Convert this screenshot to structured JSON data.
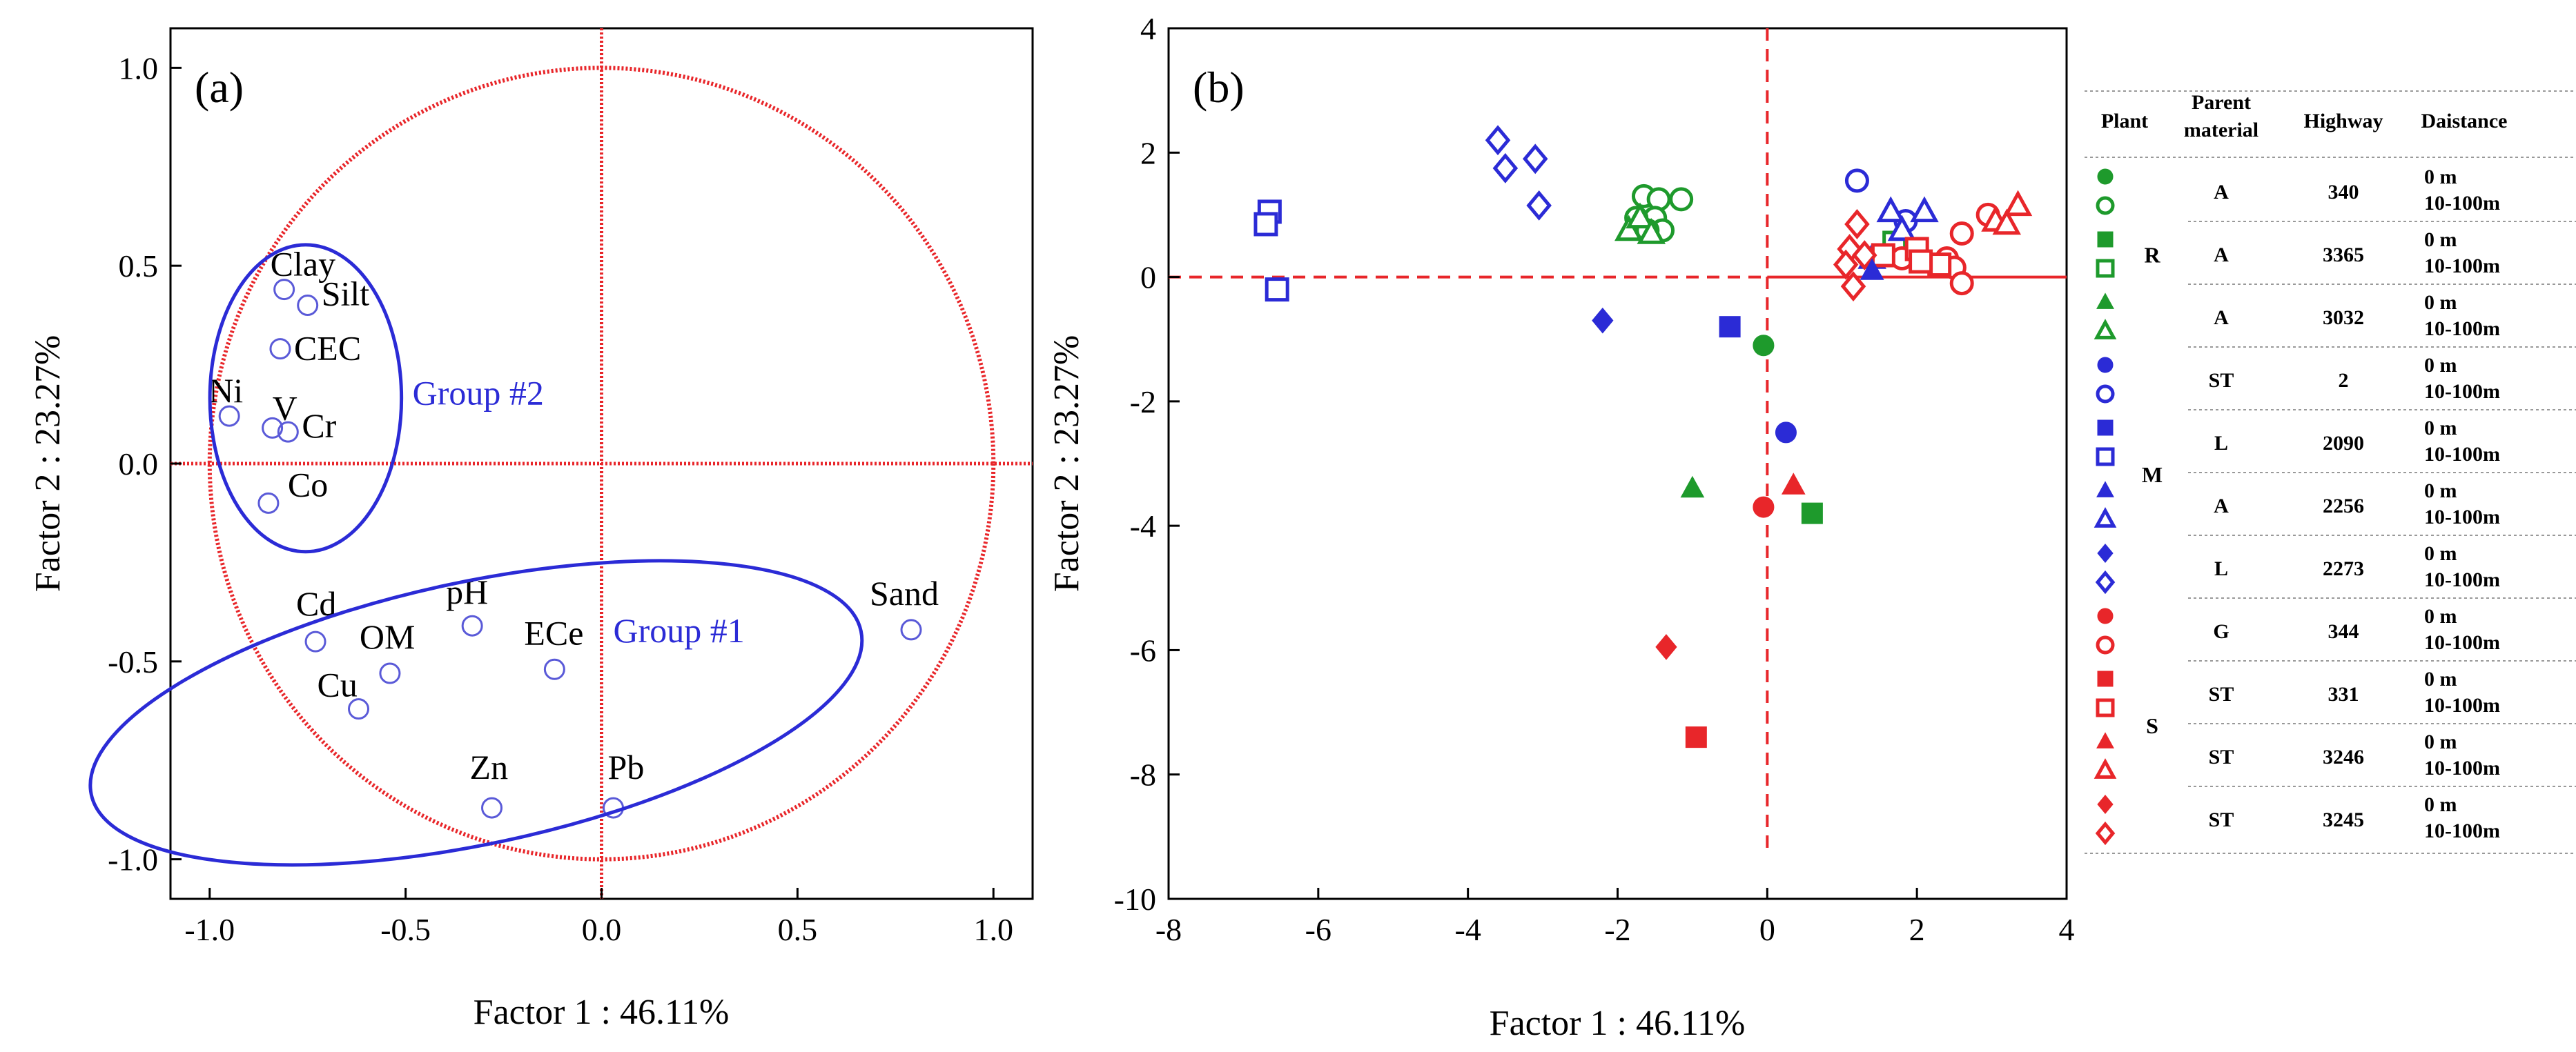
{
  "colors": {
    "red": "#e8262a",
    "blue": "#2b2bd6",
    "green": "#1e9a2c",
    "axis": "#000000",
    "circle": "#e8262a"
  },
  "chart_data": [
    {
      "type": "scatter",
      "panel_label": "(a)",
      "title": "",
      "xlabel": "Factor 1 : 46.11%",
      "ylabel": "Factor 2 : 23.27%",
      "xlim": [
        -1.1,
        1.1
      ],
      "ylim": [
        -1.1,
        1.1
      ],
      "xticks": [
        -1.0,
        -0.5,
        0.0,
        0.5,
        1.0
      ],
      "xtick_labels": [
        "-1.0",
        "-0.5",
        "0.0",
        "0.5",
        "1.0"
      ],
      "yticks": [
        -1.0,
        -0.5,
        0.0,
        0.5,
        1.0
      ],
      "ytick_labels": [
        "-1.0",
        "-0.5",
        "0.0",
        "0.5",
        "1.0"
      ],
      "grid": false,
      "unit_circle": true,
      "points": [
        {
          "label": "Clay",
          "x": -0.81,
          "y": 0.44
        },
        {
          "label": "Silt",
          "x": -0.75,
          "y": 0.4
        },
        {
          "label": "CEC",
          "x": -0.82,
          "y": 0.29
        },
        {
          "label": "Ni",
          "x": -0.95,
          "y": 0.12
        },
        {
          "label": "V",
          "x": -0.84,
          "y": 0.09
        },
        {
          "label": "Cr",
          "x": -0.8,
          "y": 0.08
        },
        {
          "label": "Co",
          "x": -0.85,
          "y": -0.1
        },
        {
          "label": "pH",
          "x": -0.33,
          "y": -0.41
        },
        {
          "label": "Cd",
          "x": -0.73,
          "y": -0.45
        },
        {
          "label": "OM",
          "x": -0.54,
          "y": -0.53
        },
        {
          "label": "ECe",
          "x": -0.12,
          "y": -0.52
        },
        {
          "label": "Cu",
          "x": -0.62,
          "y": -0.62
        },
        {
          "label": "Zn",
          "x": -0.28,
          "y": -0.87
        },
        {
          "label": "Pb",
          "x": 0.03,
          "y": -0.87
        },
        {
          "label": "Sand",
          "x": 0.79,
          "y": -0.42
        }
      ],
      "groups": [
        {
          "label": "Group #2",
          "members": [
            "Clay",
            "Silt",
            "CEC",
            "Ni",
            "V",
            "Cr",
            "Co"
          ]
        },
        {
          "label": "Group #1",
          "members": [
            "pH",
            "Cd",
            "OM",
            "ECe",
            "Cu",
            "Zn",
            "Pb"
          ]
        }
      ]
    },
    {
      "type": "scatter",
      "panel_label": "(b)",
      "title": "",
      "xlabel": "Factor 1 : 46.11%",
      "ylabel": "Factor 2 : 23.27%",
      "xlim": [
        -8,
        4
      ],
      "ylim": [
        -10,
        4
      ],
      "xticks": [
        -8,
        -6,
        -4,
        -2,
        0,
        2,
        4
      ],
      "xtick_labels": [
        "-8",
        "-6",
        "-4",
        "-2",
        "0",
        "2",
        "4"
      ],
      "yticks": [
        -10,
        -8,
        -6,
        -4,
        -2,
        0,
        2,
        4
      ],
      "ytick_labels": [
        "-10",
        "-8",
        "-6",
        "-4",
        "-2",
        "0",
        "2",
        "4"
      ],
      "grid": false,
      "series": [
        {
          "name": "R 340 0 m",
          "color": "green",
          "marker": "circle",
          "filled": true,
          "points": [
            [
              -0.05,
              -1.1
            ]
          ]
        },
        {
          "name": "R 340 10-100m",
          "color": "green",
          "marker": "circle",
          "filled": false,
          "points": [
            [
              -1.65,
              1.3
            ],
            [
              -1.45,
              1.25
            ],
            [
              -1.15,
              1.25
            ],
            [
              -1.5,
              0.95
            ],
            [
              -1.75,
              0.95
            ],
            [
              -1.4,
              0.75
            ],
            [
              -1.6,
              0.75
            ]
          ]
        },
        {
          "name": "R 3365 0 m",
          "color": "green",
          "marker": "square",
          "filled": true,
          "points": [
            [
              0.6,
              -3.8
            ]
          ]
        },
        {
          "name": "R 3365 10-100m",
          "color": "green",
          "marker": "square",
          "filled": false,
          "points": [
            [
              1.7,
              0.55
            ]
          ]
        },
        {
          "name": "R 3032 0 m",
          "color": "green",
          "marker": "triangle",
          "filled": true,
          "points": [
            [
              -1.0,
              -3.4
            ]
          ]
        },
        {
          "name": "R 3032 10-100m",
          "color": "green",
          "marker": "triangle",
          "filled": false,
          "points": [
            [
              -1.85,
              0.75
            ],
            [
              -1.7,
              0.95
            ],
            [
              -1.55,
              0.7
            ]
          ]
        },
        {
          "name": "M 2 0 m",
          "color": "blue",
          "marker": "circle",
          "filled": true,
          "points": [
            [
              0.25,
              -2.5
            ]
          ]
        },
        {
          "name": "M 2 10-100m",
          "color": "blue",
          "marker": "circle",
          "filled": false,
          "points": [
            [
              1.2,
              1.55
            ],
            [
              1.85,
              0.9
            ]
          ]
        },
        {
          "name": "M 2090 0 m",
          "color": "blue",
          "marker": "square",
          "filled": true,
          "points": [
            [
              -0.5,
              -0.8
            ]
          ]
        },
        {
          "name": "M 2090 10-100m",
          "color": "blue",
          "marker": "square",
          "filled": false,
          "points": [
            [
              -6.65,
              1.05
            ],
            [
              -6.7,
              0.85
            ],
            [
              -6.55,
              -0.2
            ]
          ]
        },
        {
          "name": "M 2256 0 m",
          "color": "blue",
          "marker": "triangle",
          "filled": true,
          "points": [
            [
              1.4,
              0.1
            ]
          ]
        },
        {
          "name": "M 2256 10-100m",
          "color": "blue",
          "marker": "triangle",
          "filled": false,
          "points": [
            [
              1.65,
              1.05
            ],
            [
              2.1,
              1.05
            ],
            [
              1.8,
              0.75
            ],
            [
              1.4,
              0.3
            ]
          ]
        },
        {
          "name": "M 2273 0 m",
          "color": "blue",
          "marker": "diamond",
          "filled": true,
          "points": [
            [
              -2.2,
              -0.7
            ]
          ]
        },
        {
          "name": "M 2273 10-100m",
          "color": "blue",
          "marker": "diamond",
          "filled": false,
          "points": [
            [
              -3.6,
              2.2
            ],
            [
              -3.1,
              1.9
            ],
            [
              -3.5,
              1.75
            ],
            [
              -3.05,
              1.15
            ]
          ]
        },
        {
          "name": "S 344 0 m",
          "color": "red",
          "marker": "circle",
          "filled": true,
          "points": [
            [
              -0.05,
              -3.7
            ]
          ]
        },
        {
          "name": "S 344 10-100m",
          "color": "red",
          "marker": "circle",
          "filled": false,
          "points": [
            [
              2.95,
              1.0
            ],
            [
              2.6,
              0.7
            ],
            [
              2.4,
              0.3
            ],
            [
              2.5,
              0.15
            ],
            [
              2.6,
              -0.1
            ],
            [
              1.8,
              0.3
            ]
          ]
        },
        {
          "name": "S 331 0 m",
          "color": "red",
          "marker": "square",
          "filled": true,
          "points": [
            [
              -0.95,
              -7.4
            ]
          ]
        },
        {
          "name": "S 331 10-100m",
          "color": "red",
          "marker": "square",
          "filled": false,
          "points": [
            [
              1.55,
              0.35
            ],
            [
              2.0,
              0.45
            ],
            [
              2.3,
              0.2
            ],
            [
              2.05,
              0.25
            ]
          ]
        },
        {
          "name": "S 3246 0 m",
          "color": "red",
          "marker": "triangle",
          "filled": true,
          "points": [
            [
              0.35,
              -3.35
            ]
          ]
        },
        {
          "name": "S 3246 10-100m",
          "color": "red",
          "marker": "triangle",
          "filled": false,
          "points": [
            [
              3.35,
              1.15
            ],
            [
              3.05,
              0.9
            ],
            [
              3.2,
              0.85
            ]
          ]
        },
        {
          "name": "S 3245 0 m",
          "color": "red",
          "marker": "diamond",
          "filled": true,
          "points": [
            [
              -1.35,
              -5.95
            ]
          ]
        },
        {
          "name": "S 3245 10-100m",
          "color": "red",
          "marker": "diamond",
          "filled": false,
          "points": [
            [
              1.2,
              0.85
            ],
            [
              1.1,
              0.45
            ],
            [
              1.05,
              0.2
            ],
            [
              1.15,
              -0.15
            ],
            [
              1.3,
              0.35
            ]
          ]
        }
      ]
    }
  ],
  "legend": {
    "headers": {
      "plant": "Plant",
      "parent_material": [
        "Parent",
        "material"
      ],
      "highway": "Highway",
      "distance": "Daistance"
    },
    "plant_groups": [
      {
        "plant": "R",
        "color": "green"
      },
      {
        "plant": "M",
        "color": "blue"
      },
      {
        "plant": "S",
        "color": "red"
      }
    ],
    "rows": [
      {
        "plant": "R",
        "parent_material": "A",
        "highway": "340",
        "color": "green",
        "marker": "circle",
        "distances": [
          "0 m",
          "10-100m"
        ]
      },
      {
        "plant": "R",
        "parent_material": "A",
        "highway": "3365",
        "color": "green",
        "marker": "square",
        "distances": [
          "0 m",
          "10-100m"
        ]
      },
      {
        "plant": "R",
        "parent_material": "A",
        "highway": "3032",
        "color": "green",
        "marker": "triangle",
        "distances": [
          "0 m",
          "10-100m"
        ]
      },
      {
        "plant": "M",
        "parent_material": "ST",
        "highway": "2",
        "color": "blue",
        "marker": "circle",
        "distances": [
          "0 m",
          "10-100m"
        ]
      },
      {
        "plant": "M",
        "parent_material": "L",
        "highway": "2090",
        "color": "blue",
        "marker": "square",
        "distances": [
          "0 m",
          "10-100m"
        ]
      },
      {
        "plant": "M",
        "parent_material": "A",
        "highway": "2256",
        "color": "blue",
        "marker": "triangle",
        "distances": [
          "0 m",
          "10-100m"
        ]
      },
      {
        "plant": "M",
        "parent_material": "L",
        "highway": "2273",
        "color": "blue",
        "marker": "diamond",
        "distances": [
          "0 m",
          "10-100m"
        ]
      },
      {
        "plant": "S",
        "parent_material": "G",
        "highway": "344",
        "color": "red",
        "marker": "circle",
        "distances": [
          "0 m",
          "10-100m"
        ]
      },
      {
        "plant": "S",
        "parent_material": "ST",
        "highway": "331",
        "color": "red",
        "marker": "square",
        "distances": [
          "0 m",
          "10-100m"
        ]
      },
      {
        "plant": "S",
        "parent_material": "ST",
        "highway": "3246",
        "color": "red",
        "marker": "triangle",
        "distances": [
          "0 m",
          "10-100m"
        ]
      },
      {
        "plant": "S",
        "parent_material": "ST",
        "highway": "3245",
        "color": "red",
        "marker": "diamond",
        "distances": [
          "0 m",
          "10-100m"
        ]
      }
    ]
  }
}
